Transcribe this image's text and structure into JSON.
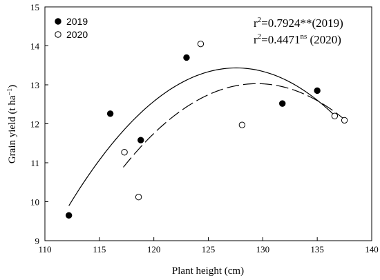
{
  "chart_data": {
    "type": "scatter",
    "xlabel": "Plant height (cm)",
    "ylabel_parts": {
      "base": "Grain yield (t ha",
      "sup": "−1",
      "end": ")"
    },
    "xlim": [
      110,
      140
    ],
    "ylim": [
      9,
      15
    ],
    "x_ticks": [
      110,
      115,
      120,
      125,
      130,
      135,
      140
    ],
    "y_ticks": [
      9,
      10,
      11,
      12,
      13,
      14,
      15
    ],
    "series": [
      {
        "name": "2019",
        "marker": "filled-circle",
        "points": [
          {
            "x": 112.2,
            "y": 9.65
          },
          {
            "x": 116.0,
            "y": 12.26
          },
          {
            "x": 118.8,
            "y": 11.58
          },
          {
            "x": 123.0,
            "y": 13.7
          },
          {
            "x": 131.8,
            "y": 12.52
          },
          {
            "x": 135.0,
            "y": 12.85
          }
        ],
        "fit": {
          "style": "solid",
          "a": -0.01498,
          "b": 3.8219,
          "c": -230.34,
          "x_range": [
            112.2,
            136.8
          ]
        }
      },
      {
        "name": "2020",
        "marker": "open-circle",
        "points": [
          {
            "x": 117.3,
            "y": 11.27
          },
          {
            "x": 118.6,
            "y": 10.12
          },
          {
            "x": 124.3,
            "y": 14.05
          },
          {
            "x": 128.1,
            "y": 11.97
          },
          {
            "x": 136.6,
            "y": 12.2
          },
          {
            "x": 137.5,
            "y": 12.09
          }
        ],
        "fit": {
          "style": "dashed",
          "a": -0.01424,
          "b": 3.6874,
          "c": -225.68,
          "x_range": [
            117.2,
            137.5
          ]
        }
      }
    ],
    "annotations": [
      {
        "r2": "r",
        "sup": "2",
        "value": "=0.7924**(2019)"
      },
      {
        "r2": "r",
        "sup": "2",
        "value": "=0.4471",
        "sup2": "ns",
        "tail": " (2020)"
      }
    ],
    "legend_position": "top-left",
    "grid": false
  }
}
